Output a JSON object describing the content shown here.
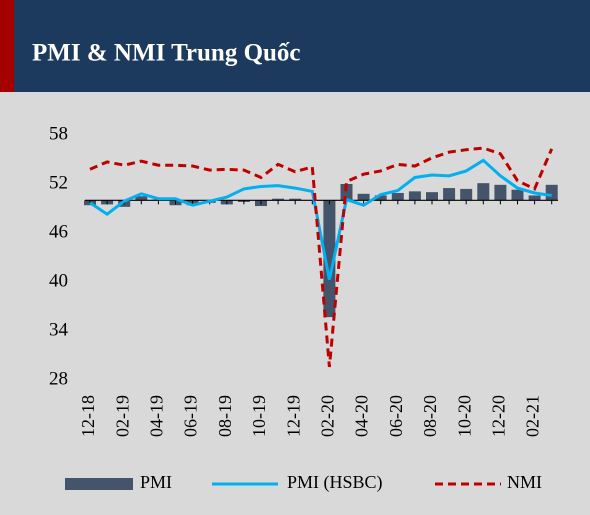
{
  "chart_data": {
    "type": "bar_line",
    "title": "PMI & NMI Trung Quốc",
    "categories": [
      "12-18",
      null,
      "02-19",
      null,
      "04-19",
      null,
      "06-19",
      null,
      "08-19",
      null,
      "10-19",
      null,
      "12-19",
      null,
      "02-20",
      null,
      "04-20",
      null,
      "06-20",
      null,
      "08-20",
      null,
      "10-20",
      null,
      "12-20",
      null,
      "02-21",
      null
    ],
    "series": [
      {
        "name": "PMI",
        "color": "#44546a",
        "kind": "bar",
        "values": [
          49.4,
          49.5,
          49.2,
          50.5,
          50.1,
          49.4,
          49.4,
          49.7,
          49.5,
          49.8,
          49.3,
          50.2,
          50.2,
          50.0,
          35.7,
          52.0,
          50.8,
          50.6,
          50.9,
          51.1,
          51.0,
          51.5,
          51.4,
          52.1,
          51.9,
          51.3,
          50.6,
          51.9
        ]
      },
      {
        "name": "PMI (HSBC)",
        "color": "#00b0f0",
        "kind": "line",
        "values": [
          49.7,
          48.3,
          49.9,
          50.8,
          50.2,
          50.2,
          49.4,
          49.9,
          50.4,
          51.4,
          51.7,
          51.8,
          51.5,
          51.1,
          40.3,
          50.1,
          49.4,
          50.7,
          51.2,
          52.8,
          53.1,
          53.0,
          53.6,
          54.9,
          53.0,
          51.5,
          50.9,
          50.6
        ]
      },
      {
        "name": "NMI",
        "color": "#c00000",
        "kind": "dashed",
        "values": [
          53.8,
          54.7,
          54.3,
          54.8,
          54.3,
          54.3,
          54.2,
          53.7,
          53.8,
          53.7,
          52.8,
          54.4,
          53.5,
          54.1,
          29.6,
          52.3,
          53.2,
          53.6,
          54.4,
          54.2,
          55.2,
          55.9,
          56.2,
          56.4,
          55.7,
          52.4,
          51.4,
          56.3
        ]
      }
    ],
    "ylim": [
      28,
      58
    ],
    "yticks": [
      28,
      34,
      40,
      46,
      52,
      58
    ],
    "x_axis_at": 50,
    "legend": "bottom"
  }
}
